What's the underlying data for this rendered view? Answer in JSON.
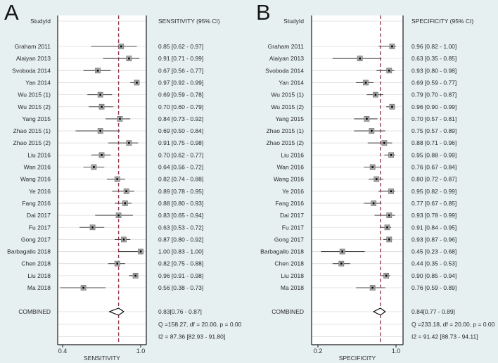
{
  "figure": {
    "background": "#e6f0f0",
    "plot_background": "#ffffff",
    "grid_color": "#dcdcdc",
    "frame_color": "#1a1a1a",
    "ci_color": "#4a4a4a",
    "marker_fill": "#a8a8a8",
    "marker_stroke": "#777777",
    "dot_color": "#000000",
    "ref_line_color": "#bf2745",
    "diamond_fill": "#ffffff",
    "diamond_stroke": "#000000"
  },
  "chart_data": [
    {
      "type": "forest",
      "panel_label": "A",
      "column_header": "StudyId",
      "value_header": "SENSITIVITY (95% CI)",
      "xlabel": "SENSITIVITY",
      "xlim": [
        0.362,
        1.043
      ],
      "ticks": [
        {
          "value": 0.4,
          "label": "0.4"
        },
        {
          "value": 1.0,
          "label": "1.0"
        }
      ],
      "studies": [
        {
          "study": "Graham 2011",
          "est": 0.85,
          "lo": 0.62,
          "hi": 0.97,
          "label": "0.85 [0.62 - 0.97]"
        },
        {
          "study": "Alaiyan 2013",
          "est": 0.91,
          "lo": 0.71,
          "hi": 0.99,
          "label": "0.91 [0.71 - 0.99]"
        },
        {
          "study": "Svoboda 2014",
          "est": 0.67,
          "lo": 0.56,
          "hi": 0.77,
          "label": "0.67 [0.56 - 0.77]"
        },
        {
          "study": "Yan 2014",
          "est": 0.97,
          "lo": 0.92,
          "hi": 0.99,
          "label": "0.97 [0.92 - 0.99]"
        },
        {
          "study": "Wu 2015 (1)",
          "est": 0.69,
          "lo": 0.59,
          "hi": 0.78,
          "label": "0.69 [0.59 - 0.78]"
        },
        {
          "study": "Wu 2015 (2)",
          "est": 0.7,
          "lo": 0.6,
          "hi": 0.79,
          "label": "0.70 [0.60 - 0.79]"
        },
        {
          "study": "Yang 2015",
          "est": 0.84,
          "lo": 0.73,
          "hi": 0.92,
          "label": "0.84 [0.73 - 0.92]"
        },
        {
          "study": "Zhao 2015 (1)",
          "est": 0.69,
          "lo": 0.5,
          "hi": 0.84,
          "label": "0.69 [0.50 - 0.84]"
        },
        {
          "study": "Zhao 2015 (2)",
          "est": 0.91,
          "lo": 0.75,
          "hi": 0.98,
          "label": "0.91 [0.75 - 0.98]"
        },
        {
          "study": "Liu 2016",
          "est": 0.7,
          "lo": 0.62,
          "hi": 0.77,
          "label": "0.70 [0.62 - 0.77]"
        },
        {
          "study": "Wan 2016",
          "est": 0.64,
          "lo": 0.56,
          "hi": 0.72,
          "label": "0.64 [0.56 - 0.72]"
        },
        {
          "study": "Wang 2016",
          "est": 0.82,
          "lo": 0.74,
          "hi": 0.88,
          "label": "0.82 [0.74 - 0.88]"
        },
        {
          "study": "Ye 2016",
          "est": 0.89,
          "lo": 0.78,
          "hi": 0.95,
          "label": "0.89 [0.78 - 0.95]"
        },
        {
          "study": "Fang 2016",
          "est": 0.88,
          "lo": 0.8,
          "hi": 0.93,
          "label": "0.88 [0.80 - 0.93]"
        },
        {
          "study": "Dai 2017",
          "est": 0.83,
          "lo": 0.65,
          "hi": 0.94,
          "label": "0.83 [0.65 - 0.94]"
        },
        {
          "study": "Fu 2017",
          "est": 0.63,
          "lo": 0.53,
          "hi": 0.72,
          "label": "0.63 [0.53 - 0.72]"
        },
        {
          "study": "Gong 2017",
          "est": 0.87,
          "lo": 0.8,
          "hi": 0.92,
          "label": "0.87 [0.80 - 0.92]"
        },
        {
          "study": "Barbagallo 2018",
          "est": 1.0,
          "lo": 0.83,
          "hi": 1.0,
          "label": "1.00 [0.83 - 1.00]"
        },
        {
          "study": "Chen 2018",
          "est": 0.82,
          "lo": 0.75,
          "hi": 0.88,
          "label": "0.82 [0.75 - 0.88]"
        },
        {
          "study": "Liu 2018",
          "est": 0.96,
          "lo": 0.91,
          "hi": 0.98,
          "label": "0.96 [0.91 - 0.98]"
        },
        {
          "study": "Ma 2018",
          "est": 0.56,
          "lo": 0.38,
          "hi": 0.73,
          "label": "0.56 [0.38 - 0.73]"
        }
      ],
      "combined": {
        "study": "COMBINED",
        "est": 0.83,
        "lo": 0.76,
        "hi": 0.87,
        "label": "0.83[0.76 - 0.87]"
      },
      "heterogeneity": [
        "Q =158.27, df = 20.00, p =  0.00",
        "I2 = 87.36 [82.93 - 91.80]"
      ]
    },
    {
      "type": "forest",
      "panel_label": "B",
      "column_header": "StudyId",
      "value_header": "SPECIFICITY (95% CI)",
      "xlabel": "SPECIFICITY",
      "xlim": [
        0.135,
        1.072
      ],
      "ticks": [
        {
          "value": 0.2,
          "label": "0.2"
        },
        {
          "value": 1.0,
          "label": "1.0"
        }
      ],
      "studies": [
        {
          "study": "Graham 2011",
          "est": 0.96,
          "lo": 0.82,
          "hi": 1.0,
          "label": "0.96 [0.82 - 1.00]"
        },
        {
          "study": "Alaiyan 2013",
          "est": 0.63,
          "lo": 0.35,
          "hi": 0.85,
          "label": "0.63 [0.35 - 0.85]"
        },
        {
          "study": "Svoboda 2014",
          "est": 0.93,
          "lo": 0.8,
          "hi": 0.98,
          "label": "0.93 [0.80 - 0.98]"
        },
        {
          "study": "Yan 2014",
          "est": 0.69,
          "lo": 0.59,
          "hi": 0.77,
          "label": "0.69 [0.59 - 0.77]"
        },
        {
          "study": "Wu 2015 (1)",
          "est": 0.79,
          "lo": 0.7,
          "hi": 0.87,
          "label": "0.79 [0.70 - 0.87]"
        },
        {
          "study": "Wu 2015 (2)",
          "est": 0.96,
          "lo": 0.9,
          "hi": 0.99,
          "label": "0.96 [0.90 - 0.99]"
        },
        {
          "study": "Yang 2015",
          "est": 0.7,
          "lo": 0.57,
          "hi": 0.81,
          "label": "0.70 [0.57 - 0.81]"
        },
        {
          "study": "Zhao 2015 (1)",
          "est": 0.75,
          "lo": 0.57,
          "hi": 0.89,
          "label": "0.75 [0.57 - 0.89]"
        },
        {
          "study": "Zhao 2015 (2)",
          "est": 0.88,
          "lo": 0.71,
          "hi": 0.96,
          "label": "0.88 [0.71 - 0.96]"
        },
        {
          "study": "Liu 2016",
          "est": 0.95,
          "lo": 0.88,
          "hi": 0.99,
          "label": "0.95 [0.88 - 0.99]"
        },
        {
          "study": "Wan 2016",
          "est": 0.76,
          "lo": 0.67,
          "hi": 0.84,
          "label": "0.76 [0.67 - 0.84]"
        },
        {
          "study": "Wang 2016",
          "est": 0.8,
          "lo": 0.72,
          "hi": 0.87,
          "label": "0.80 [0.72 - 0.87]"
        },
        {
          "study": "Ye 2016",
          "est": 0.95,
          "lo": 0.82,
          "hi": 0.99,
          "label": "0.95 [0.82 - 0.99]"
        },
        {
          "study": "Fang 2016",
          "est": 0.77,
          "lo": 0.67,
          "hi": 0.85,
          "label": "0.77 [0.67 - 0.85]"
        },
        {
          "study": "Dai 2017",
          "est": 0.93,
          "lo": 0.78,
          "hi": 0.99,
          "label": "0.93 [0.78 - 0.99]"
        },
        {
          "study": "Fu 2017",
          "est": 0.91,
          "lo": 0.84,
          "hi": 0.95,
          "label": "0.91 [0.84 - 0.95]"
        },
        {
          "study": "Gong 2017",
          "est": 0.93,
          "lo": 0.87,
          "hi": 0.96,
          "label": "0.93 [0.87 - 0.96]"
        },
        {
          "study": "Barbagallo 2018",
          "est": 0.45,
          "lo": 0.23,
          "hi": 0.68,
          "label": "0.45 [0.23 - 0.68]"
        },
        {
          "study": "Chen 2018",
          "est": 0.44,
          "lo": 0.35,
          "hi": 0.53,
          "label": "0.44 [0.35 - 0.53]"
        },
        {
          "study": "Liu 2018",
          "est": 0.9,
          "lo": 0.85,
          "hi": 0.94,
          "label": "0.90 [0.85 - 0.94]"
        },
        {
          "study": "Ma 2018",
          "est": 0.76,
          "lo": 0.59,
          "hi": 0.89,
          "label": "0.76 [0.59 - 0.89]"
        }
      ],
      "combined": {
        "study": "COMBINED",
        "est": 0.84,
        "lo": 0.77,
        "hi": 0.89,
        "label": "0.84[0.77 - 0.89]"
      },
      "heterogeneity": [
        "Q =233.18, df = 20.00, p =  0.00",
        "I2 = 91.42 [88.73 - 94.11]"
      ]
    }
  ]
}
